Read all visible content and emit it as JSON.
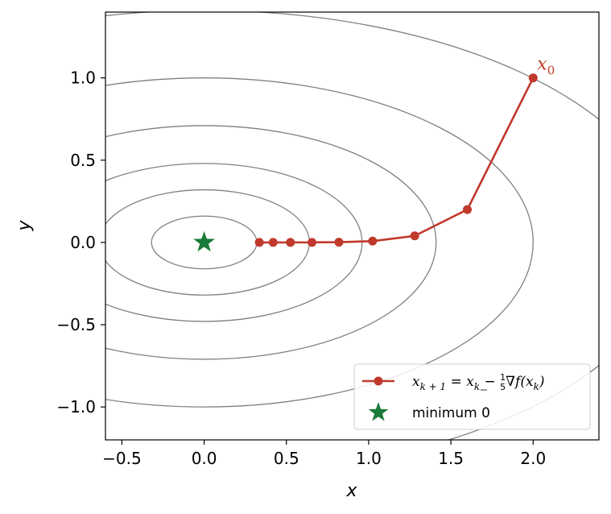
{
  "chart_data": {
    "type": "line",
    "title": "",
    "xlabel": "x",
    "ylabel": "y",
    "xlim": [
      -0.6,
      2.4
    ],
    "ylim": [
      -1.2,
      1.4
    ],
    "xticks": [
      -0.5,
      0.0,
      0.5,
      1.0,
      1.5,
      2.0
    ],
    "xtick_labels": [
      "−0.5",
      "0.0",
      "0.5",
      "1.0",
      "1.5",
      "2.0"
    ],
    "yticks": [
      -1.0,
      -0.5,
      0.0,
      0.5,
      1.0
    ],
    "ytick_labels": [
      "−1.0",
      "−0.5",
      "0.0",
      "0.5",
      "1.0"
    ],
    "grid": false,
    "legend_position": "lower-right",
    "contours": {
      "center": [
        0,
        0
      ],
      "semi_axes": [
        [
          0.32,
          0.16
        ],
        [
          0.64,
          0.32
        ],
        [
          0.96,
          0.48
        ],
        [
          1.41,
          0.71
        ],
        [
          2.0,
          1.0
        ],
        [
          2.83,
          1.41
        ]
      ],
      "color": "#808080"
    },
    "series": [
      {
        "name_prefix": "x",
        "name_sub1": "k + 1",
        "name_eq": " = x",
        "name_sub2": "k",
        "name_minus": " − ",
        "name_frac_num": "1",
        "name_frac_den": "5",
        "name_grad": "∇f(x",
        "name_sub3": "k",
        "name_close": ")",
        "color": "#c0392b",
        "x": [
          2.0,
          1.6,
          1.28,
          1.024,
          0.8192,
          0.6554,
          0.5243,
          0.4194,
          0.3355
        ],
        "y": [
          1.0,
          0.2,
          0.04,
          0.008,
          0.0016,
          0.0003,
          6e-05,
          1e-05,
          0.0
        ],
        "start_label_main": "x",
        "start_label_sub": "0"
      },
      {
        "name": "minimum 0",
        "color": "#1a7a3a",
        "marker": "star",
        "x": [
          0.0
        ],
        "y": [
          0.0
        ]
      }
    ]
  }
}
